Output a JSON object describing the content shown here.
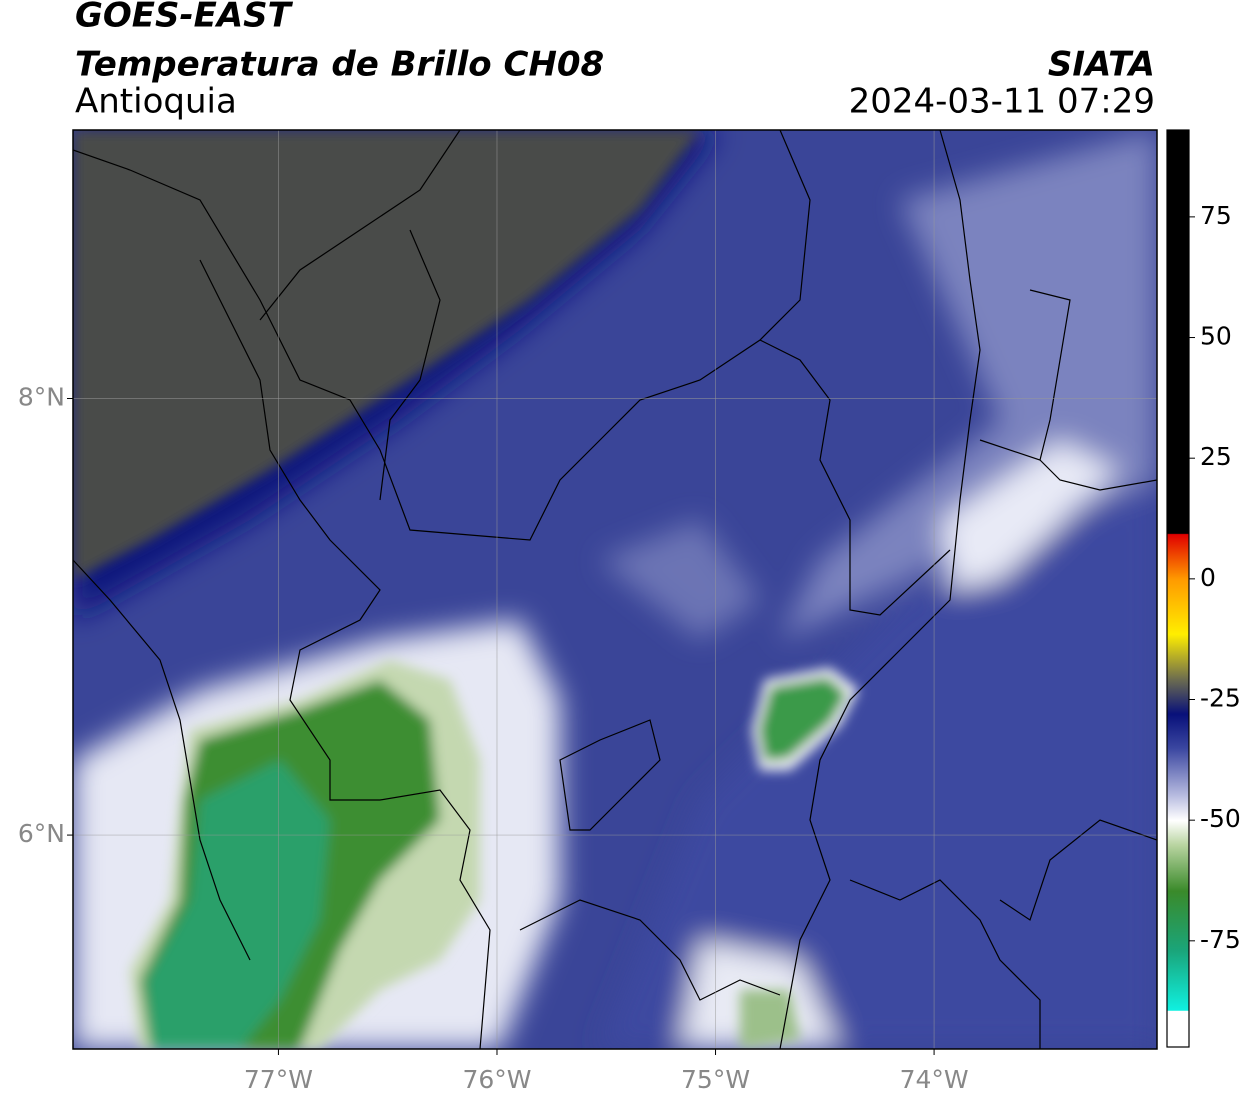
{
  "header": {
    "title": "GOES-EAST",
    "subtitle": "Temperatura de Brillo CH08",
    "region": "Antioquia",
    "source": "SIATA",
    "timestamp": "2024-03-11 07:29"
  },
  "map": {
    "xlim": [
      -77.94,
      -72.98
    ],
    "ylim": [
      5.02,
      9.23
    ],
    "xticks": [
      {
        "value": -77,
        "label": "77°W"
      },
      {
        "value": -76,
        "label": "76°W"
      },
      {
        "value": -75,
        "label": "75°W"
      },
      {
        "value": -74,
        "label": "74°W"
      }
    ],
    "yticks": [
      {
        "value": 6,
        "label": "6°N"
      },
      {
        "value": 8,
        "label": "8°N"
      }
    ],
    "grid": true
  },
  "colorbar": {
    "lim": [
      -97,
      93
    ],
    "ticks": [
      -75,
      -50,
      -25,
      0,
      25,
      50,
      75
    ]
  }
}
